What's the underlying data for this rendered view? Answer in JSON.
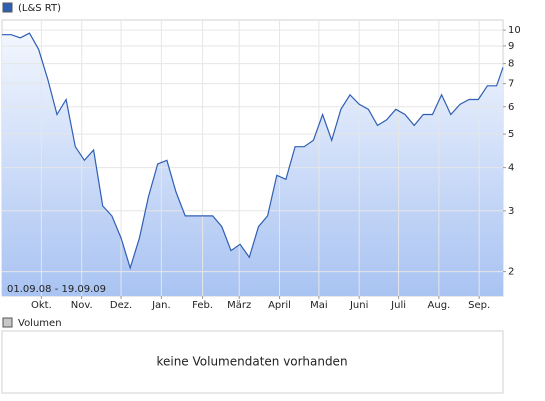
{
  "chart_data": {
    "type": "line",
    "log_scale": true,
    "grid": true,
    "date_range": "01.09.08 - 19.09.09",
    "series": [
      {
        "name": "(L&S RT)",
        "color": "#2f5fb3",
        "values": [
          9.7,
          9.7,
          9.5,
          9.8,
          8.8,
          7.2,
          5.7,
          6.3,
          4.6,
          4.2,
          4.5,
          3.1,
          2.9,
          2.5,
          2.05,
          2.5,
          3.3,
          4.1,
          4.2,
          3.4,
          2.9,
          2.9,
          2.9,
          2.9,
          2.7,
          2.3,
          2.4,
          2.2,
          2.7,
          2.9,
          3.8,
          3.7,
          4.6,
          4.6,
          4.8,
          5.7,
          4.8,
          5.9,
          6.5,
          6.1,
          5.9,
          5.3,
          5.5,
          5.9,
          5.7,
          5.3,
          5.7,
          5.7,
          6.5,
          5.7,
          6.1,
          6.3,
          6.3,
          6.9,
          6.9,
          7.8
        ]
      }
    ],
    "x": [
      0,
      1,
      2,
      3,
      4,
      5,
      6,
      7,
      8,
      9,
      10,
      11,
      12,
      13,
      14,
      15,
      16,
      17,
      18,
      19,
      20,
      21,
      22,
      23,
      24,
      25,
      26,
      27,
      28,
      29,
      30,
      31,
      32,
      33,
      34,
      35,
      36,
      37,
      38,
      39,
      40,
      41,
      42,
      43,
      44,
      45,
      46,
      47,
      48,
      49,
      50,
      51,
      52,
      53,
      54,
      54.7
    ],
    "xlim": [
      0,
      54.7
    ],
    "xticks": [
      {
        "value": 4.3,
        "label": "Okt."
      },
      {
        "value": 8.7,
        "label": "Nov."
      },
      {
        "value": 13,
        "label": "Dez."
      },
      {
        "value": 17.4,
        "label": "Jan."
      },
      {
        "value": 21.9,
        "label": "Feb."
      },
      {
        "value": 25.9,
        "label": "März"
      },
      {
        "value": 30.3,
        "label": "April"
      },
      {
        "value": 34.6,
        "label": "Mai"
      },
      {
        "value": 39,
        "label": "Juni"
      },
      {
        "value": 43.3,
        "label": "Juli"
      },
      {
        "value": 47.7,
        "label": "Aug."
      },
      {
        "value": 52.1,
        "label": "Sep."
      }
    ],
    "ylim": [
      1.7,
      10.7
    ],
    "yticks": [
      2,
      3,
      4,
      5,
      6,
      7,
      8,
      9,
      10
    ]
  },
  "volume_panel": {
    "legend": "Volumen",
    "message": "keine Volumendaten vorhanden",
    "color": "#c8c8c8"
  }
}
